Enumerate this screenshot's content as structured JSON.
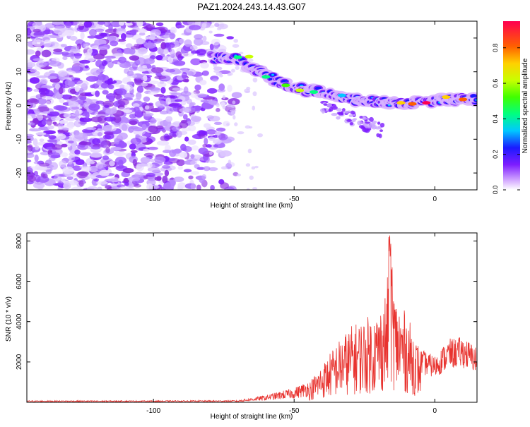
{
  "title": "PAZ1.2024.243.14.43.G07",
  "chart_data": [
    {
      "type": "heatmap",
      "xlabel": "Height of straight line (km)",
      "ylabel": "Frequency (Hz)",
      "xlim": [
        -145,
        15
      ],
      "ylim": [
        -25,
        25
      ],
      "xticks": [
        -100,
        -50,
        0
      ],
      "yticks": [
        -20,
        -10,
        0,
        10,
        20
      ],
      "colorbar": {
        "label": "Normalized spectral amplitude",
        "range": [
          0,
          0.95
        ],
        "ticks": [
          0.0,
          0.2,
          0.4,
          0.6,
          0.8
        ]
      },
      "signal_track": {
        "description_points": [
          {
            "x": -80,
            "y": 14
          },
          {
            "x": -70,
            "y": 14
          },
          {
            "x": -60,
            "y": 9
          },
          {
            "x": -50,
            "y": 5
          },
          {
            "x": -40,
            "y": 4
          },
          {
            "x": -30,
            "y": 2
          },
          {
            "x": -20,
            "y": 1
          },
          {
            "x": -10,
            "y": 0.5
          },
          {
            "x": 0,
            "y": 1.5
          },
          {
            "x": 10,
            "y": 2
          }
        ]
      }
    },
    {
      "type": "line",
      "xlabel": "Height of straight line (km)",
      "ylabel": "SNR (10 * v/v)",
      "xlim": [
        -145,
        15
      ],
      "ylim": [
        0,
        8400
      ],
      "xticks": [
        -100,
        -50,
        0
      ],
      "yticks": [
        2000,
        4000,
        6000,
        8000
      ],
      "color": "#e8332f",
      "envelope": [
        {
          "x": -145,
          "y": 70
        },
        {
          "x": -100,
          "y": 70
        },
        {
          "x": -70,
          "y": 80
        },
        {
          "x": -60,
          "y": 300
        },
        {
          "x": -50,
          "y": 600
        },
        {
          "x": -45,
          "y": 900
        },
        {
          "x": -40,
          "y": 1800
        },
        {
          "x": -35,
          "y": 2800
        },
        {
          "x": -30,
          "y": 3600
        },
        {
          "x": -25,
          "y": 4000
        },
        {
          "x": -20,
          "y": 4300
        },
        {
          "x": -17,
          "y": 5500
        },
        {
          "x": -16,
          "y": 8300
        },
        {
          "x": -14,
          "y": 5000
        },
        {
          "x": -10,
          "y": 4200
        },
        {
          "x": -5,
          "y": 2500
        },
        {
          "x": 0,
          "y": 2200
        },
        {
          "x": 5,
          "y": 3000
        },
        {
          "x": 10,
          "y": 3100
        },
        {
          "x": 15,
          "y": 2600
        }
      ]
    }
  ]
}
